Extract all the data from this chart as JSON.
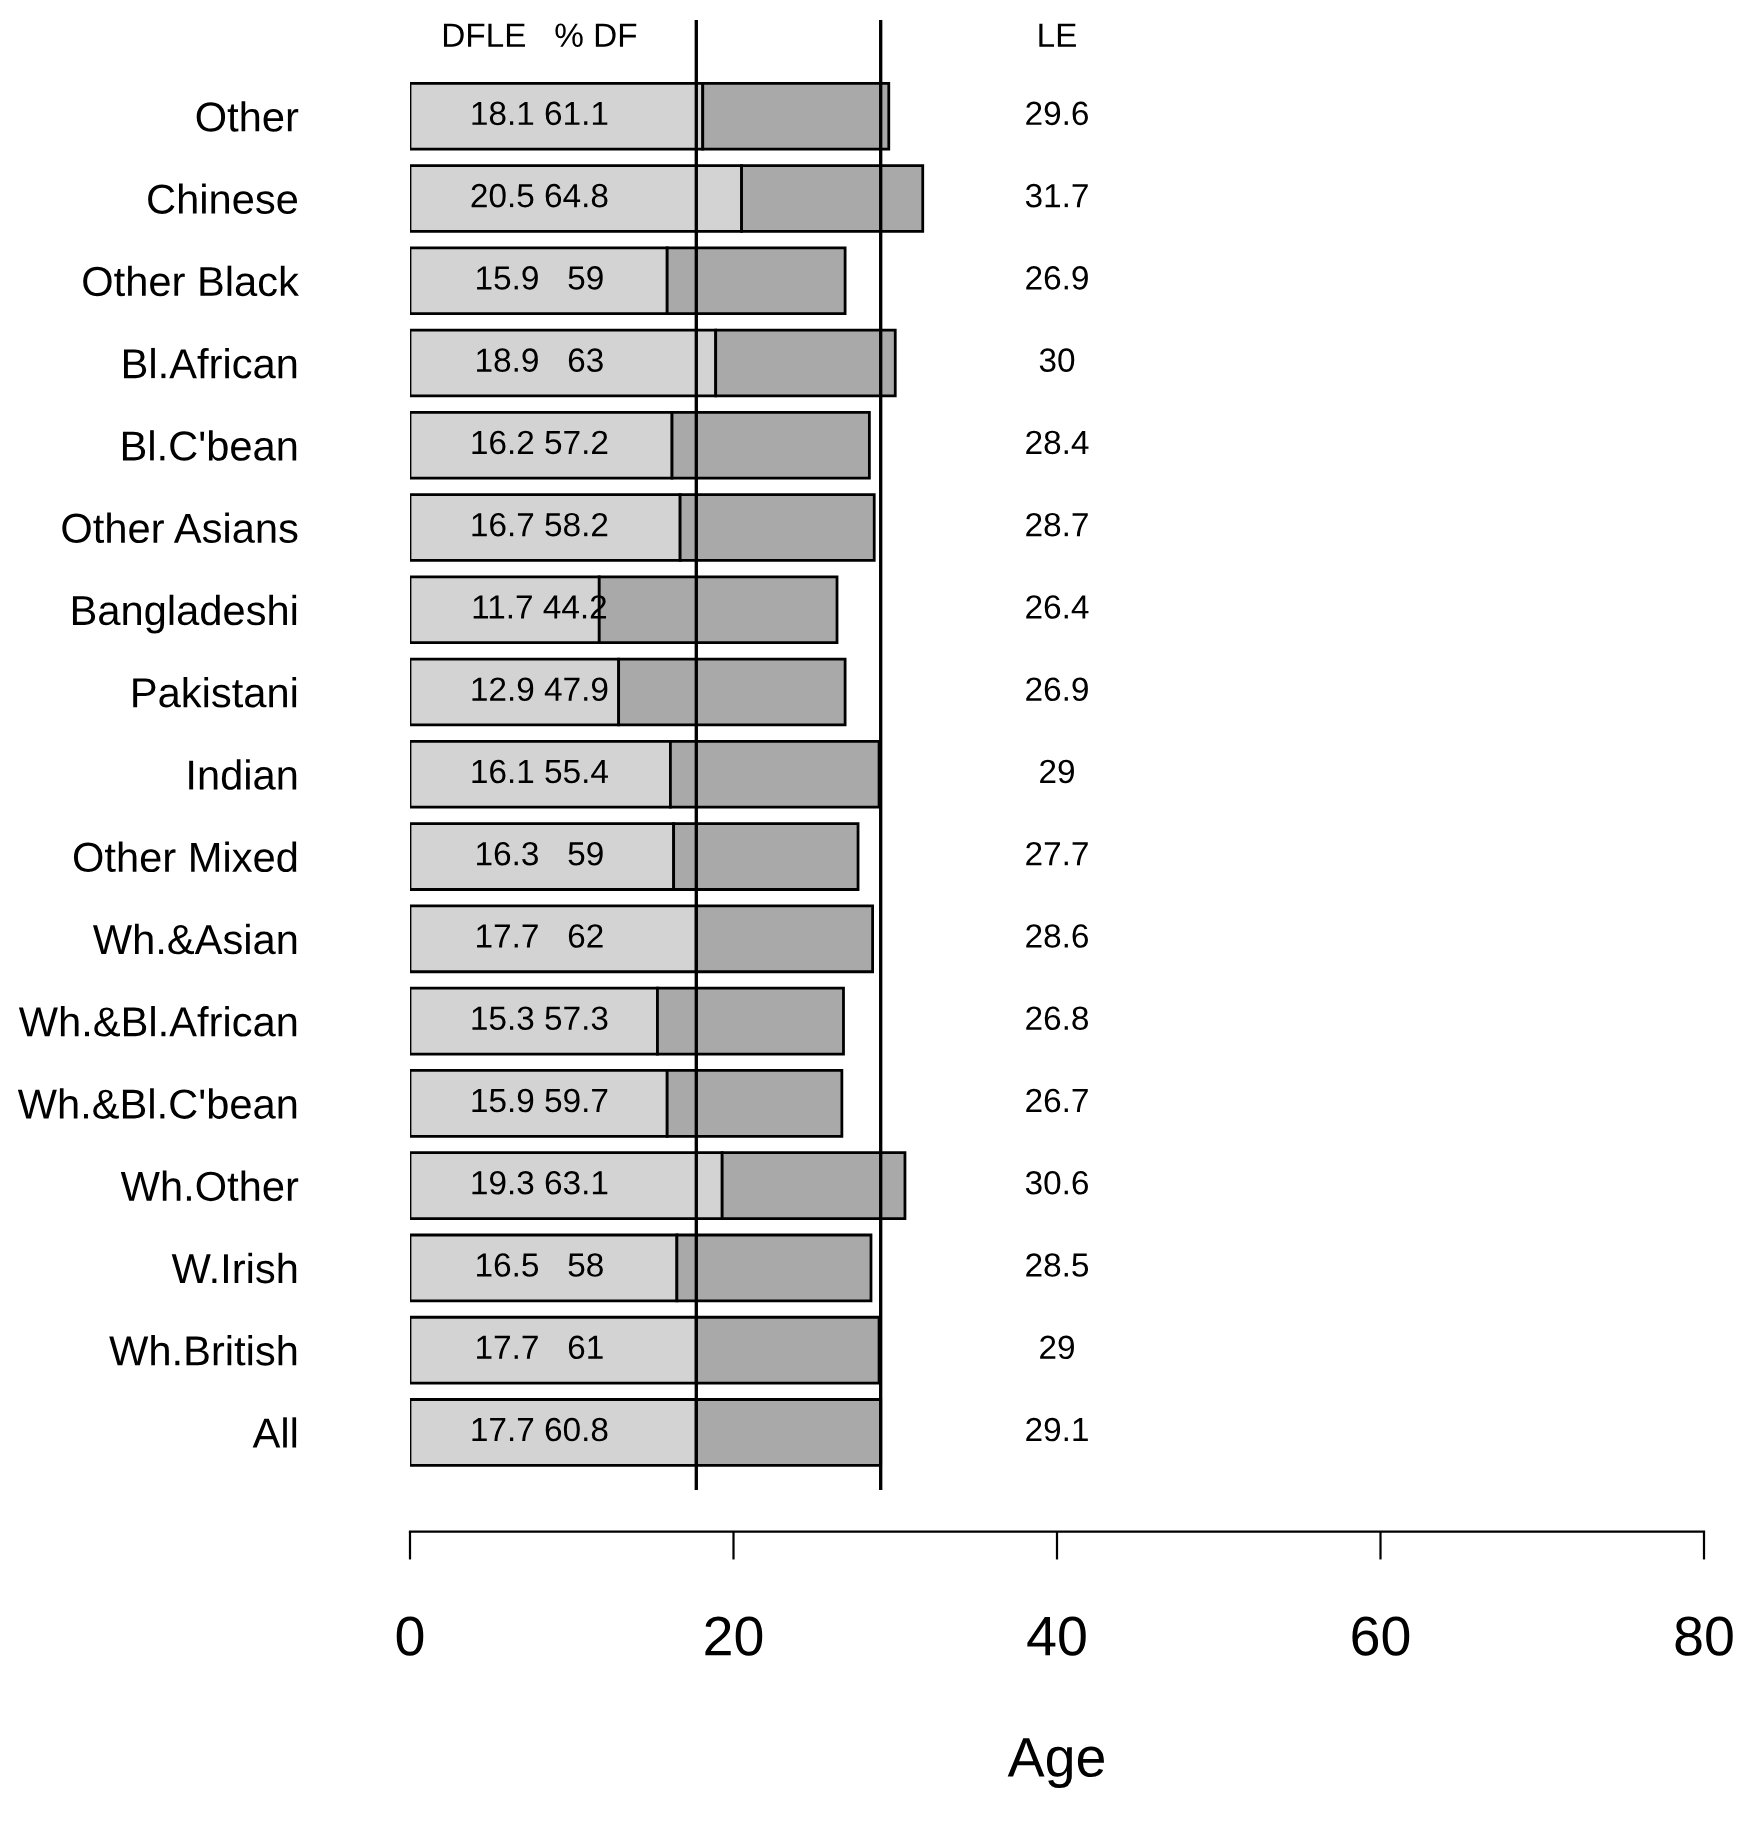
{
  "chart_data": {
    "type": "bar",
    "orientation": "horizontal",
    "stacked": true,
    "xlabel": "Age",
    "categories": [
      "Other",
      "Chinese",
      "Other Black",
      "Bl.African",
      "Bl.C'bean",
      "Other Asians",
      "Bangladeshi",
      "Pakistani",
      "Indian",
      "Other Mixed",
      "Wh.&Asian",
      "Wh.&Bl.African",
      "Wh.&Bl.C'bean",
      "Wh.Other",
      "W.Irish",
      "Wh.British",
      "All"
    ],
    "series": [
      {
        "color": "#d3d3d3",
        "values": [
          18.1,
          20.5,
          15.9,
          18.9,
          16.2,
          16.7,
          11.7,
          12.9,
          16.1,
          16.3,
          17.7,
          15.3,
          15.9,
          19.3,
          16.5,
          17.7,
          17.7
        ],
        "value_labels": [
          "18.1 61.1",
          "20.5 64.8",
          "15.9   59",
          "18.9   63",
          "16.2 57.2",
          "16.7 58.2",
          "11.7 44.2",
          "12.9 47.9",
          "16.1 55.4",
          "16.3   59",
          "17.7   62",
          "15.3 57.3",
          "15.9 59.7",
          "19.3 63.1",
          "16.5   58",
          "17.7   61",
          "17.7 60.8"
        ]
      },
      {
        "color": "#a9a9a9",
        "values": [
          11.5,
          11.2,
          11.0,
          11.1,
          12.2,
          12.0,
          14.7,
          14.0,
          12.9,
          11.4,
          10.9,
          11.5,
          10.8,
          11.3,
          12.0,
          11.3,
          11.4
        ]
      }
    ],
    "xlim": [
      0,
      80
    ],
    "xticks": [
      0,
      20,
      40,
      60,
      80
    ],
    "ref_lines": [
      {
        "axis": "x",
        "value": 17.7,
        "color": "#000000"
      },
      {
        "axis": "x",
        "value": 29.1,
        "color": "#000000"
      }
    ],
    "annotations": [
      "DFLE   % DF",
      "LE",
      "29.6",
      "31.7",
      "26.9",
      "30",
      "28.4",
      "28.7",
      "26.4",
      "26.9",
      "29",
      "27.7",
      "28.6",
      "26.8",
      "26.7",
      "30.6",
      "28.5",
      "29",
      "29.1"
    ],
    "grid": false,
    "legend": false
  }
}
